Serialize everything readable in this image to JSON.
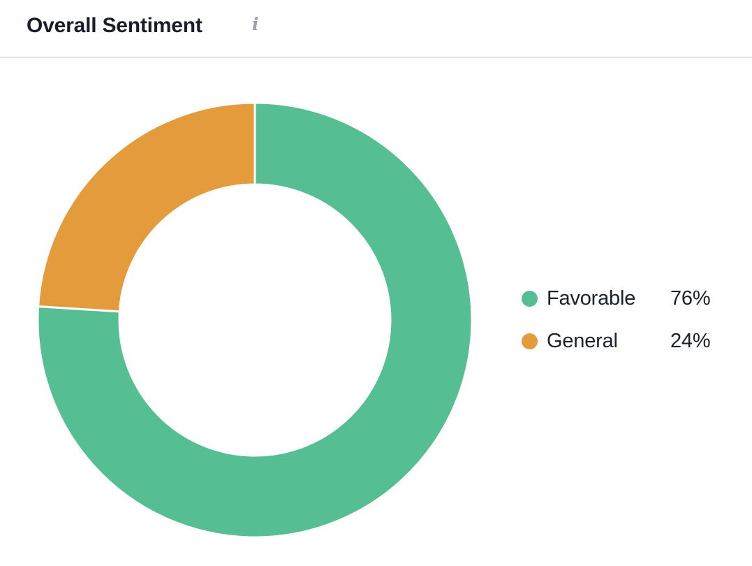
{
  "header": {
    "title": "Overall Sentiment",
    "info_icon_glyph": "i"
  },
  "chart_data": {
    "type": "pie",
    "subtype": "donut",
    "title": "Overall Sentiment",
    "slices": [
      {
        "label": "Favorable",
        "value": 76,
        "percent_label": "76%",
        "color": "#55be92"
      },
      {
        "label": "General",
        "value": 24,
        "percent_label": "24%",
        "color": "#e39b3c"
      }
    ],
    "start_angle_deg": 0,
    "direction": "clockwise",
    "inner_radius_ratio": 0.625,
    "separator_color": "#ffffff",
    "legend_position": "right"
  }
}
